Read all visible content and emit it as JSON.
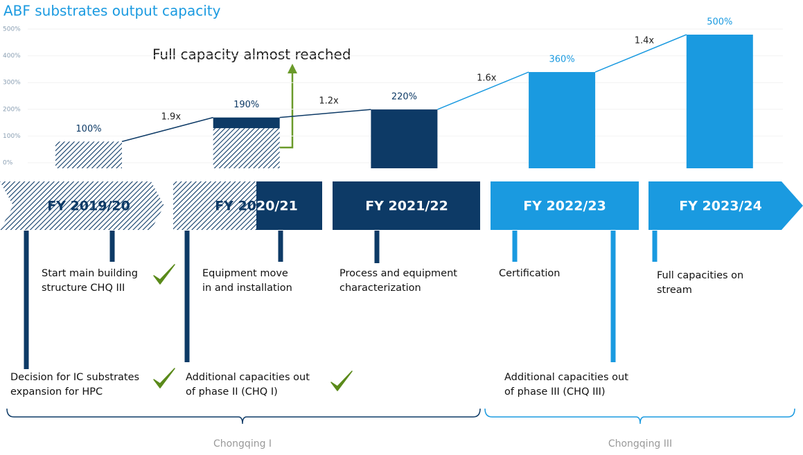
{
  "chart_data": {
    "type": "bar",
    "title": "ABF substrates output capacity",
    "categories": [
      "FY 2019/20",
      "FY 2020/21",
      "FY 2021/22",
      "FY 2022/23",
      "FY 2023/24"
    ],
    "values": [
      100,
      190,
      220,
      360,
      500
    ],
    "value_labels": [
      "100%",
      "190%",
      "220%",
      "360%",
      "500%"
    ],
    "hatched_values": [
      100,
      150,
      null,
      null,
      null
    ],
    "colors": [
      "#0d3a66",
      "#0d3a66",
      "#0d3a66",
      "#1a9ae0",
      "#1a9ae0"
    ],
    "growth_labels": [
      "1.9x",
      "1.2x",
      "1.6x",
      "1.4x"
    ],
    "annotation": "Full capacity almost reached",
    "ylim": [
      0,
      500
    ],
    "yticks": [
      {
        "value": 0,
        "label": "0%"
      },
      {
        "value": 100,
        "label": "100%"
      },
      {
        "value": 200,
        "label": "200%"
      },
      {
        "value": 300,
        "label": "300%"
      },
      {
        "value": 400,
        "label": "400%"
      },
      {
        "value": 500,
        "label": "500%"
      }
    ],
    "grid": true,
    "milestones": [
      {
        "lines": [
          "Decision for IC substrates",
          "expansion for HPC"
        ],
        "check": true
      },
      {
        "lines": [
          "Start main building",
          "structure CHQ III"
        ],
        "check": true
      },
      {
        "lines": [
          "Additional capacities out",
          "of phase II (CHQ I)"
        ],
        "check": true
      },
      {
        "lines": [
          "Equipment move",
          "in and installation"
        ],
        "check": false
      },
      {
        "lines": [
          "Process and equipment",
          "characterization"
        ],
        "check": false
      },
      {
        "lines": [
          "Certification"
        ],
        "check": false
      },
      {
        "lines": [
          "Additional capacities out",
          "of phase III (CHQ III)"
        ],
        "check": false
      },
      {
        "lines": [
          "Full capacities on",
          "stream"
        ],
        "check": false
      }
    ],
    "groups": [
      "Chongqing I",
      "Chongqing III"
    ]
  }
}
